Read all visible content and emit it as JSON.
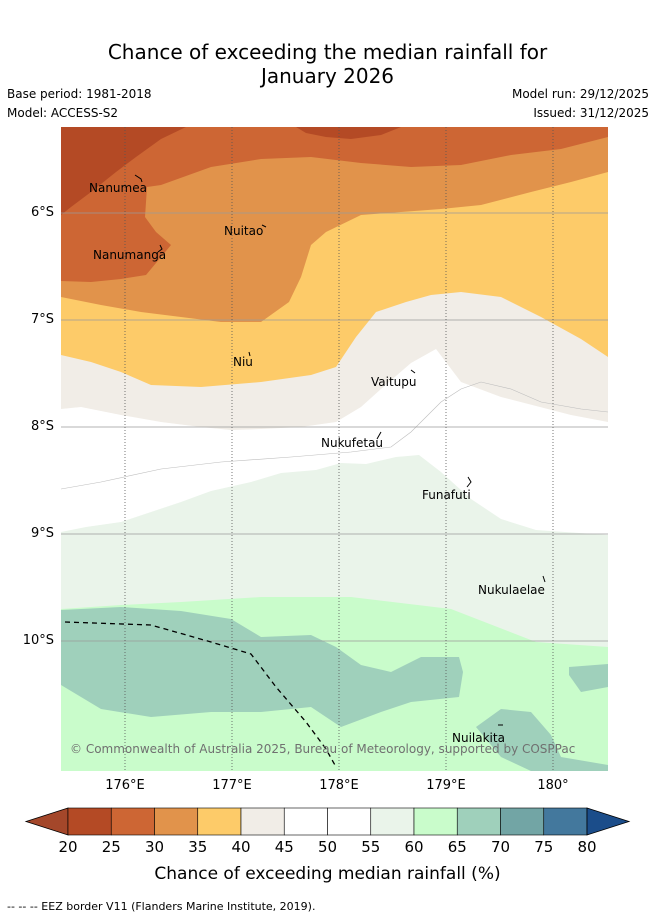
{
  "header": {
    "title_line1": "Chance of exceeding the median rainfall for",
    "title_line2": "January 2026",
    "base_period": "Base period: 1981-2018",
    "model": "Model: ACCESS-S2",
    "model_run": "Model run: 29/12/2025",
    "issued": "Issued: 31/12/2025"
  },
  "map": {
    "lat_labels": [
      "6°S",
      "7°S",
      "8°S",
      "9°S",
      "10°S"
    ],
    "lon_labels": [
      "176°E",
      "177°E",
      "178°E",
      "179°E",
      "180°"
    ],
    "places": [
      "Nanumea",
      "Nuitao",
      "Nanumanga",
      "Niu",
      "Vaitupu",
      "Nukufetau",
      "Funafuti",
      "Nukulaelae",
      "Nuilakita"
    ],
    "copyright": "© Commonwealth of Australia 2025, Bureau of Meteorology, supported by COSPPac"
  },
  "colorbar": {
    "ticks": [
      "20",
      "25",
      "30",
      "35",
      "40",
      "45",
      "50",
      "55",
      "60",
      "65",
      "70",
      "75",
      "80"
    ],
    "colors": [
      "#b44a25",
      "#cd6634",
      "#e1934b",
      "#fdcb69",
      "#f1ede7",
      "#ffffff",
      "#ffffff",
      "#eaf4ea",
      "#c9fccb",
      "#9fd0bb",
      "#72a5a5",
      "#43789d"
    ],
    "under_color": "#a4472a",
    "over_color": "#1b4d8a",
    "title": "Chance of exceeding median rainfall (%)"
  },
  "legend": {
    "eez_text": "--  --  -- EEZ border V11 (Flanders Marine Institute, 2019)."
  }
}
